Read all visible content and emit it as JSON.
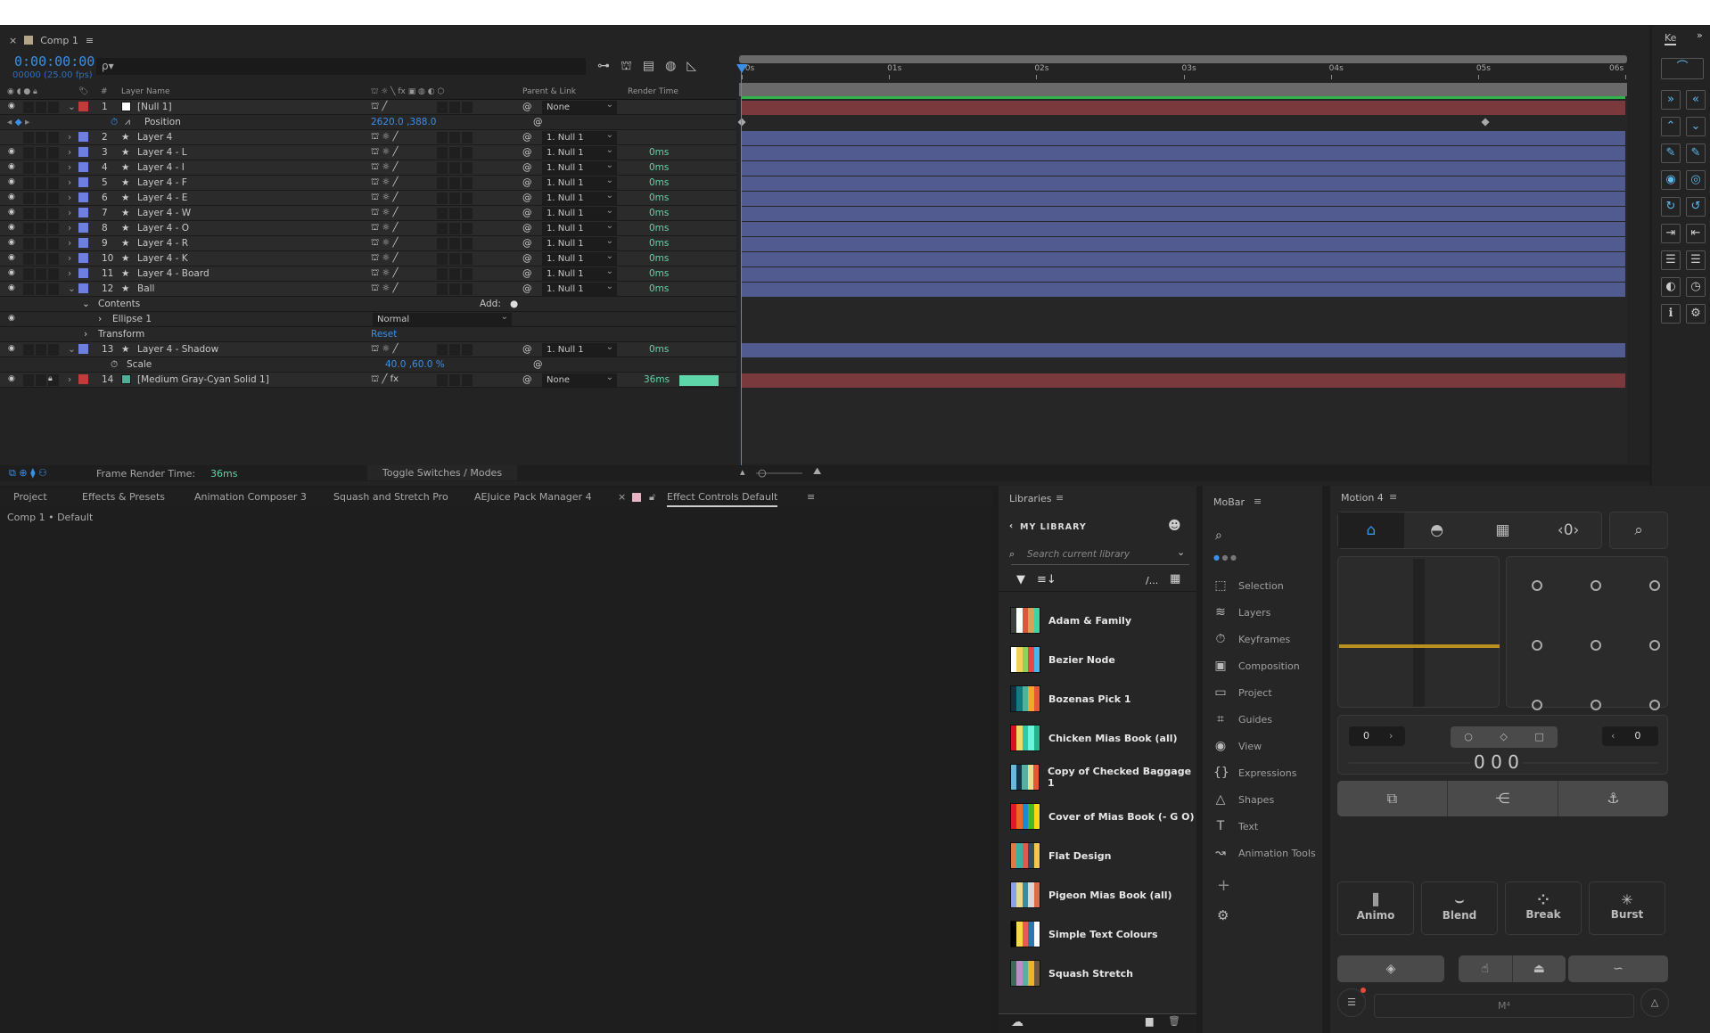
{
  "comp_tab": {
    "label": "Comp 1",
    "color": "#b4a58a"
  },
  "timecode": "0:00:00:00",
  "fps": "00000 (25.00 fps)",
  "search": {
    "placeholder": "ρ▾"
  },
  "columns": {
    "layer_name": "Layer Name",
    "num": "#",
    "parent": "Parent & Link",
    "render": "Render Time"
  },
  "layers": [
    {
      "num": "1",
      "name": "[Null 1]",
      "label": "#c23b3b",
      "swatch": "#ffffff",
      "type": "null",
      "parent": "None",
      "render": "",
      "eye": true,
      "lock": false,
      "open": true
    },
    {
      "sub": "position",
      "name": "Position",
      "value": "2620.0 ,388.0"
    },
    {
      "num": "2",
      "name": "Layer 4",
      "label": "#6f7fe0",
      "type": "shape",
      "parent": "1. Null 1",
      "render": "",
      "eye": false,
      "lock": false,
      "open": false
    },
    {
      "num": "3",
      "name": "Layer 4 - L",
      "label": "#6f7fe0",
      "type": "shape",
      "parent": "1. Null 1",
      "render": "0ms",
      "eye": true
    },
    {
      "num": "4",
      "name": "Layer 4 - I",
      "label": "#6f7fe0",
      "type": "shape",
      "parent": "1. Null 1",
      "render": "0ms",
      "eye": true
    },
    {
      "num": "5",
      "name": "Layer 4 - F",
      "label": "#6f7fe0",
      "type": "shape",
      "parent": "1. Null 1",
      "render": "0ms",
      "eye": true
    },
    {
      "num": "6",
      "name": "Layer 4 - E",
      "label": "#6f7fe0",
      "type": "shape",
      "parent": "1. Null 1",
      "render": "0ms",
      "eye": true
    },
    {
      "num": "7",
      "name": "Layer 4 - W",
      "label": "#6f7fe0",
      "type": "shape",
      "parent": "1. Null 1",
      "render": "0ms",
      "eye": true
    },
    {
      "num": "8",
      "name": "Layer 4 - O",
      "label": "#6f7fe0",
      "type": "shape",
      "parent": "1. Null 1",
      "render": "0ms",
      "eye": true
    },
    {
      "num": "9",
      "name": "Layer 4 - R",
      "label": "#6f7fe0",
      "type": "shape",
      "parent": "1. Null 1",
      "render": "0ms",
      "eye": true
    },
    {
      "num": "10",
      "name": "Layer 4 - K",
      "label": "#6f7fe0",
      "type": "shape",
      "parent": "1. Null 1",
      "render": "0ms",
      "eye": true
    },
    {
      "num": "11",
      "name": "Layer 4 - Board",
      "label": "#6f7fe0",
      "type": "shape",
      "parent": "1. Null 1",
      "render": "0ms",
      "eye": true
    },
    {
      "num": "12",
      "name": "Ball",
      "label": "#6f7fe0",
      "type": "shape",
      "parent": "1. Null 1",
      "render": "0ms",
      "eye": true,
      "open": true
    },
    {
      "sub": "contents",
      "name": "Contents",
      "value": "Add:"
    },
    {
      "sub": "ellipse",
      "name": "Ellipse 1",
      "value": "Normal"
    },
    {
      "sub": "transform",
      "name": "Transform",
      "value": "Reset"
    },
    {
      "num": "13",
      "name": "Layer 4 - Shadow",
      "label": "#6f7fe0",
      "type": "shape",
      "parent": "1. Null 1",
      "render": "0ms",
      "eye": true,
      "open": true
    },
    {
      "sub": "scale",
      "name": "Scale",
      "value": "40.0 ,60.0 %"
    },
    {
      "num": "14",
      "name": "[Medium Gray-Cyan Solid 1]",
      "label": "#c23b3b",
      "swatch": "#4fae98",
      "type": "solid",
      "parent": "None",
      "render": "36ms",
      "eye": true,
      "lock": true,
      "render_bar": "#5fd6a8"
    }
  ],
  "timeline": {
    "ruler": [
      "00s",
      "01s",
      "02s",
      "03s",
      "04s",
      "05s",
      "06s"
    ],
    "duration_s": 6,
    "position_keyframes_s": [
      0,
      5.05
    ],
    "null_bar": "#7a3a3d",
    "shape_bar": "#525b8f",
    "work_area": "#2fb34a"
  },
  "bottom": {
    "frame_render_label": "Frame Render Time:",
    "frame_render_value": "36ms",
    "toggle": "Toggle Switches / Modes"
  },
  "right_panel": {
    "tab": "Ke"
  },
  "lower_tabs": [
    "Project",
    "Effects & Presets",
    "Animation Composer 3",
    "Squash and Stretch Pro",
    "AEJuice Pack Manager 4"
  ],
  "effect_controls": {
    "label": "Effect Controls",
    "mode": "Default",
    "subtitle": "Comp 1 • Default"
  },
  "libraries": {
    "title": "Libraries",
    "library": "MY LIBRARY",
    "search_placeholder": "Search current library",
    "sort_label": "/...",
    "items": [
      {
        "name": "Adam & Family",
        "colors": [
          "#3a3f3f",
          "#ffffff",
          "#d9573e",
          "#d9a05a",
          "#3dd6a3"
        ]
      },
      {
        "name": "Bezier Node",
        "colors": [
          "#ffffff",
          "#f2d25a",
          "#8ed45a",
          "#e84545",
          "#4ab4f0"
        ]
      },
      {
        "name": "Bozenas Pick 1",
        "colors": [
          "#133040",
          "#137a7f",
          "#4fb39a",
          "#f0a830",
          "#e8553a"
        ]
      },
      {
        "name": "Chicken Mias Book (all)",
        "colors": [
          "#d8121e",
          "#f2d76a",
          "#30c8a8",
          "#6af5dc",
          "#23b58a"
        ]
      },
      {
        "name": "Copy of Checked Baggage 1",
        "colors": [
          "#6ab8e0",
          "#133548",
          "#55b0a0",
          "#eedc94",
          "#e8563a"
        ]
      },
      {
        "name": "Cover of Mias Book (- G O)",
        "colors": [
          "#e01a22",
          "#e86a22",
          "#1a8ad8",
          "#45b824",
          "#f8d81a"
        ]
      },
      {
        "name": "Flat Design",
        "colors": [
          "#e07a45",
          "#3ab0a0",
          "#e05a50",
          "#3a4a5a",
          "#f0c84a"
        ]
      },
      {
        "name": "Pigeon Mias Book (all)",
        "colors": [
          "#8aa0e8",
          "#e8d890",
          "#3a8aa0",
          "#d8d8d8",
          "#e06a50"
        ]
      },
      {
        "name": "Simple Text Colours",
        "colors": [
          "#000000",
          "#f8d84a",
          "#e85a5a",
          "#2a7aa8",
          "#ffffff"
        ]
      },
      {
        "name": "Squash Stretch",
        "colors": [
          "#3a6a58",
          "#b890c8",
          "#5ab0a0",
          "#f0b030",
          "#6a5a40"
        ]
      }
    ]
  },
  "mobar": {
    "title": "MoBar",
    "items": [
      {
        "label": "Selection",
        "icon": "⬚"
      },
      {
        "label": "Layers",
        "icon": "≋"
      },
      {
        "label": "Keyframes",
        "icon": "⏱"
      },
      {
        "label": "Composition",
        "icon": "▣"
      },
      {
        "label": "Project",
        "icon": "▭"
      },
      {
        "label": "Guides",
        "icon": "⌗"
      },
      {
        "label": "View",
        "icon": "◉"
      },
      {
        "label": "Expressions",
        "icon": "{}"
      },
      {
        "label": "Shapes",
        "icon": "△"
      },
      {
        "label": "Text",
        "icon": "T"
      },
      {
        "label": "Animation Tools",
        "icon": "↝"
      }
    ]
  },
  "motion": {
    "title": "Motion 4",
    "left_value": "0",
    "right_value": "0",
    "counter": "0 0 0",
    "buttons": [
      "Animo",
      "Blend",
      "Break",
      "Burst"
    ],
    "footer": "M⁴",
    "slider_color": "#b8901f"
  }
}
